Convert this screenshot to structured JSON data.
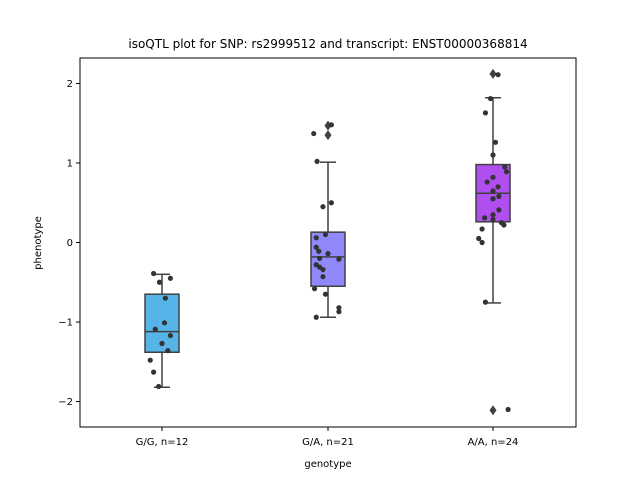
{
  "chart_data": {
    "type": "box",
    "title": "isoQTL plot for SNP: rs2999512 and transcript: ENST00000368814",
    "xlabel": "genotype",
    "ylabel": "phenotype",
    "ylim": [
      -2.32,
      2.32
    ],
    "yticks": [
      -2,
      -1,
      0,
      1,
      2
    ],
    "ytick_labels": [
      "−2",
      "−1",
      "0",
      "1",
      "2"
    ],
    "grid": false,
    "groups": [
      {
        "label": "G/G, n=12",
        "color": "#56b4e9",
        "box": {
          "whisker_low": -1.82,
          "q1": -1.38,
          "median": -1.12,
          "q3": -0.65,
          "whisker_high": -0.4
        },
        "outliers": [],
        "points": [
          {
            "x_jitter": -0.1,
            "y": -0.39
          },
          {
            "x_jitter": 0.1,
            "y": -0.45
          },
          {
            "x_jitter": -0.03,
            "y": -0.5
          },
          {
            "x_jitter": 0.04,
            "y": -0.7
          },
          {
            "x_jitter": 0.03,
            "y": -1.01
          },
          {
            "x_jitter": -0.08,
            "y": -1.09
          },
          {
            "x_jitter": 0.1,
            "y": -1.17
          },
          {
            "x_jitter": 0.0,
            "y": -1.27
          },
          {
            "x_jitter": 0.07,
            "y": -1.36
          },
          {
            "x_jitter": -0.14,
            "y": -1.48
          },
          {
            "x_jitter": -0.1,
            "y": -1.63
          },
          {
            "x_jitter": -0.04,
            "y": -1.81
          }
        ]
      },
      {
        "label": "G/A, n=21",
        "color": "#9189fb",
        "box": {
          "whisker_low": -0.94,
          "q1": -0.55,
          "median": -0.18,
          "q3": 0.13,
          "whisker_high": 1.01
        },
        "outliers": [
          1.47,
          1.35
        ],
        "points": [
          {
            "x_jitter": 0.04,
            "y": 1.48
          },
          {
            "x_jitter": -0.17,
            "y": 1.37
          },
          {
            "x_jitter": -0.13,
            "y": 1.02
          },
          {
            "x_jitter": 0.04,
            "y": 0.5
          },
          {
            "x_jitter": -0.06,
            "y": 0.45
          },
          {
            "x_jitter": -0.14,
            "y": 0.06
          },
          {
            "x_jitter": -0.14,
            "y": -0.06
          },
          {
            "x_jitter": -0.11,
            "y": -0.11
          },
          {
            "x_jitter": 0.0,
            "y": -0.14
          },
          {
            "x_jitter": -0.1,
            "y": -0.2
          },
          {
            "x_jitter": 0.13,
            "y": -0.21
          },
          {
            "x_jitter": -0.14,
            "y": -0.28
          },
          {
            "x_jitter": -0.1,
            "y": -0.31
          },
          {
            "x_jitter": -0.06,
            "y": -0.34
          },
          {
            "x_jitter": -0.06,
            "y": -0.43
          },
          {
            "x_jitter": -0.16,
            "y": -0.58
          },
          {
            "x_jitter": -0.03,
            "y": -0.65
          },
          {
            "x_jitter": 0.13,
            "y": -0.82
          },
          {
            "x_jitter": 0.13,
            "y": -0.87
          },
          {
            "x_jitter": -0.14,
            "y": -0.94
          },
          {
            "x_jitter": -0.03,
            "y": 0.1
          }
        ]
      },
      {
        "label": "A/A, n=24",
        "color": "#b04ef0",
        "box": {
          "whisker_low": -0.76,
          "q1": 0.26,
          "median": 0.62,
          "q3": 0.98,
          "whisker_high": 1.82
        },
        "outliers": [
          2.12,
          -2.11
        ],
        "points": [
          {
            "x_jitter": 0.06,
            "y": 2.11
          },
          {
            "x_jitter": -0.03,
            "y": 1.81
          },
          {
            "x_jitter": -0.09,
            "y": 1.63
          },
          {
            "x_jitter": 0.03,
            "y": 1.26
          },
          {
            "x_jitter": 0.0,
            "y": 1.1
          },
          {
            "x_jitter": 0.14,
            "y": 0.95
          },
          {
            "x_jitter": 0.16,
            "y": 0.89
          },
          {
            "x_jitter": 0.0,
            "y": 0.82
          },
          {
            "x_jitter": -0.07,
            "y": 0.76
          },
          {
            "x_jitter": 0.06,
            "y": 0.7
          },
          {
            "x_jitter": 0.0,
            "y": 0.65
          },
          {
            "x_jitter": 0.07,
            "y": 0.58
          },
          {
            "x_jitter": 0.0,
            "y": 0.55
          },
          {
            "x_jitter": 0.07,
            "y": 0.41
          },
          {
            "x_jitter": 0.0,
            "y": 0.35
          },
          {
            "x_jitter": -0.1,
            "y": 0.31
          },
          {
            "x_jitter": 0.0,
            "y": 0.29
          },
          {
            "x_jitter": 0.1,
            "y": 0.25
          },
          {
            "x_jitter": 0.13,
            "y": 0.22
          },
          {
            "x_jitter": -0.13,
            "y": 0.17
          },
          {
            "x_jitter": -0.17,
            "y": 0.05
          },
          {
            "x_jitter": -0.13,
            "y": 0.0
          },
          {
            "x_jitter": -0.09,
            "y": -0.75
          },
          {
            "x_jitter": 0.18,
            "y": -2.1
          }
        ]
      }
    ]
  }
}
